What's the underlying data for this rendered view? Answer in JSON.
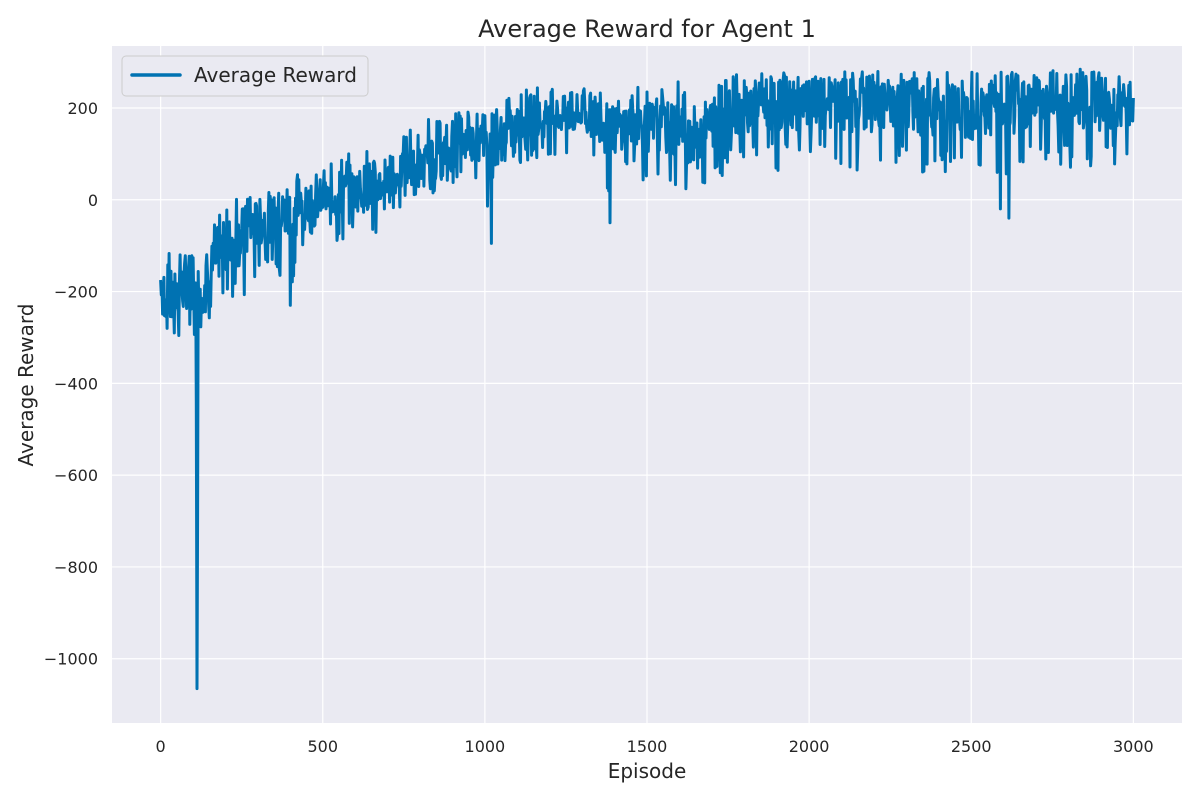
{
  "chart_data": {
    "type": "line",
    "title": "Average Reward for Agent 1",
    "xlabel": "Episode",
    "ylabel": "Average Reward",
    "xlim": [
      -150,
      3150
    ],
    "ylim": [
      -1140,
      335
    ],
    "x_ticks": [
      0,
      500,
      1000,
      1500,
      2000,
      2500,
      3000
    ],
    "y_ticks": [
      -1000,
      -800,
      -600,
      -400,
      -200,
      0,
      200
    ],
    "x_tick_labels": [
      "0",
      "500",
      "1000",
      "1500",
      "2000",
      "2500",
      "3000"
    ],
    "y_tick_labels": [
      "−1000",
      "−800",
      "−600",
      "−400",
      "−200",
      "0",
      "200"
    ],
    "grid": true,
    "legend_position": "top-left",
    "series": [
      {
        "name": "Average Reward",
        "color": "#0072B2",
        "x": [
          0,
          25,
          50,
          75,
          100,
          108,
          112,
          116,
          125,
          150,
          175,
          200,
          250,
          300,
          350,
          400,
          450,
          500,
          550,
          600,
          650,
          700,
          750,
          800,
          850,
          900,
          950,
          1000,
          1020,
          1050,
          1100,
          1150,
          1200,
          1250,
          1300,
          1350,
          1385,
          1420,
          1450,
          1500,
          1550,
          1600,
          1650,
          1700,
          1750,
          1800,
          1850,
          1900,
          1950,
          2000,
          2050,
          2100,
          2150,
          2200,
          2250,
          2300,
          2350,
          2400,
          2450,
          2500,
          2550,
          2600,
          2615,
          2650,
          2700,
          2750,
          2800,
          2850,
          2900,
          2950,
          3000
        ],
        "values": [
          -180,
          -230,
          -200,
          -190,
          -160,
          -230,
          -1065,
          -200,
          -190,
          -160,
          -120,
          -100,
          -80,
          -50,
          -40,
          -30,
          -10,
          0,
          10,
          20,
          30,
          40,
          60,
          70,
          90,
          110,
          130,
          120,
          120,
          140,
          160,
          170,
          180,
          185,
          190,
          180,
          150,
          160,
          170,
          160,
          155,
          150,
          140,
          170,
          190,
          200,
          205,
          210,
          205,
          200,
          210,
          205,
          210,
          200,
          205,
          210,
          200,
          205,
          200,
          190,
          200,
          205,
          200,
          210,
          215,
          210,
          215,
          210,
          200,
          210,
          200
        ],
        "envelope": {
          "upper": [
            -95,
            -110,
            -120,
            -100,
            -70,
            -80,
            -120,
            -60,
            -60,
            -60,
            -20,
            -10,
            10,
            30,
            40,
            60,
            60,
            60,
            100,
            100,
            110,
            90,
            140,
            170,
            180,
            190,
            195,
            190,
            190,
            230,
            240,
            245,
            240,
            245,
            245,
            240,
            200,
            245,
            250,
            240,
            240,
            260,
            250,
            250,
            270,
            275,
            280,
            275,
            280,
            275,
            280,
            285,
            280,
            285,
            280,
            280,
            285,
            280,
            285,
            280,
            285,
            280,
            270,
            285,
            285,
            285,
            285,
            285,
            285,
            285,
            270
          ],
          "lower": [
            -250,
            -375,
            -320,
            -300,
            -280,
            -320,
            -1065,
            -300,
            -290,
            -260,
            -240,
            -210,
            -230,
            -160,
            -140,
            -230,
            -80,
            -60,
            -100,
            -60,
            -110,
            -30,
            -20,
            0,
            10,
            20,
            40,
            30,
            -95,
            60,
            80,
            80,
            100,
            90,
            70,
            60,
            -50,
            60,
            70,
            30,
            40,
            10,
            20,
            40,
            60,
            80,
            90,
            60,
            80,
            50,
            80,
            70,
            60,
            70,
            90,
            60,
            60,
            50,
            60,
            45,
            40,
            -10,
            -40,
            60,
            80,
            80,
            60,
            80,
            60,
            80,
            100
          ]
        }
      }
    ]
  }
}
